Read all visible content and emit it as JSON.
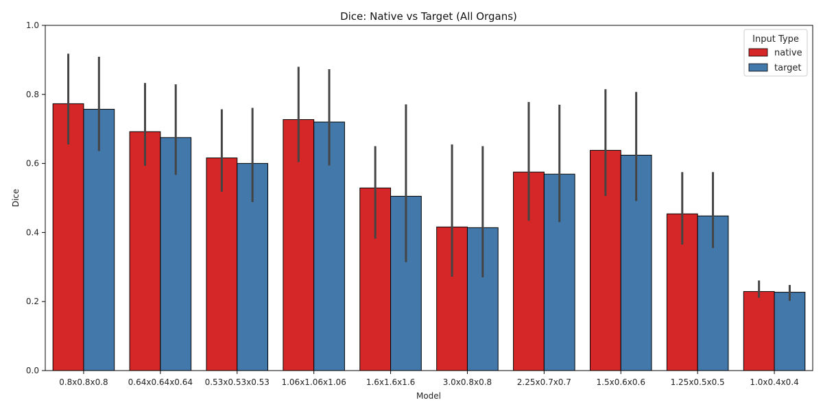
{
  "chart_data": {
    "type": "bar",
    "title": "Dice: Native vs Target (All Organs)",
    "xlabel": "Model",
    "ylabel": "Dice",
    "ylim": [
      0,
      1.0
    ],
    "yticks": [
      "0.0",
      "0.2",
      "0.4",
      "0.6",
      "0.8",
      "1.0"
    ],
    "grid": false,
    "legend": {
      "title": "Input Type",
      "placement": "top-right"
    },
    "categories": [
      "0.8x0.8x0.8",
      "0.64x0.64x0.64",
      "0.53x0.53x0.53",
      "1.06x1.06x1.06",
      "1.6x1.6x1.6",
      "3.0x0.8x0.8",
      "2.25x0.7x0.7",
      "1.5x0.6x0.6",
      "1.25x0.5x0.5",
      "1.0x0.4x0.4"
    ],
    "series": [
      {
        "name": "native",
        "color": "#d62728",
        "values": [
          0.773,
          0.692,
          0.616,
          0.727,
          0.529,
          0.416,
          0.575,
          0.638,
          0.454,
          0.229
        ],
        "ci_low": [
          0.655,
          0.593,
          0.518,
          0.604,
          0.382,
          0.272,
          0.434,
          0.506,
          0.365,
          0.211
        ],
        "ci_high": [
          0.918,
          0.833,
          0.757,
          0.88,
          0.65,
          0.655,
          0.778,
          0.815,
          0.575,
          0.261
        ]
      },
      {
        "name": "target",
        "color": "#4378ab",
        "values": [
          0.757,
          0.675,
          0.6,
          0.72,
          0.505,
          0.414,
          0.569,
          0.624,
          0.448,
          0.227
        ],
        "ci_low": [
          0.636,
          0.567,
          0.488,
          0.594,
          0.314,
          0.27,
          0.43,
          0.491,
          0.355,
          0.202
        ],
        "ci_high": [
          0.909,
          0.829,
          0.761,
          0.873,
          0.771,
          0.65,
          0.77,
          0.807,
          0.575,
          0.248
        ]
      }
    ]
  }
}
